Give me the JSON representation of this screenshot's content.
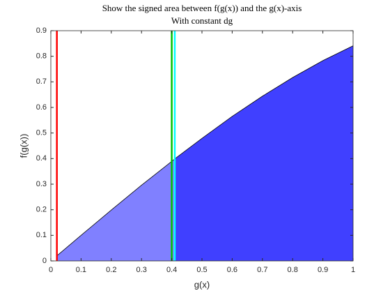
{
  "chart_data": {
    "type": "area",
    "title": "Show the signed area between f(g(x)) and the g(x)-axis",
    "subtitle": "With constant dg",
    "x_label": "g(x)",
    "y_label": "f(g(x))",
    "x": [
      0.02,
      0.1,
      0.2,
      0.3,
      0.4,
      0.41,
      0.5,
      0.6,
      0.7,
      0.8,
      0.9,
      1.0
    ],
    "values": [
      0.02,
      0.1,
      0.199,
      0.296,
      0.389,
      0.399,
      0.479,
      0.565,
      0.644,
      0.717,
      0.783,
      0.841
    ],
    "line_color": "#000000",
    "regions": [
      {
        "from": 0.02,
        "to": 0.41,
        "color": "#8080ff"
      },
      {
        "from": 0.41,
        "to": 1.0,
        "color": "#4040ff"
      }
    ],
    "vlines": [
      {
        "x": 0.02,
        "color": "#ff0000"
      },
      {
        "x": 0.4,
        "color": "#00c000"
      },
      {
        "x": 0.41,
        "color": "#00ffff"
      }
    ],
    "xlim": [
      0,
      1
    ],
    "ylim": [
      0,
      0.9
    ],
    "xticks": [
      0,
      0.1,
      0.2,
      0.3,
      0.4,
      0.5,
      0.6,
      0.7,
      0.8,
      0.9,
      1
    ],
    "yticks": [
      0,
      0.1,
      0.2,
      0.3,
      0.4,
      0.5,
      0.6,
      0.7,
      0.8,
      0.9
    ],
    "grid": false
  }
}
